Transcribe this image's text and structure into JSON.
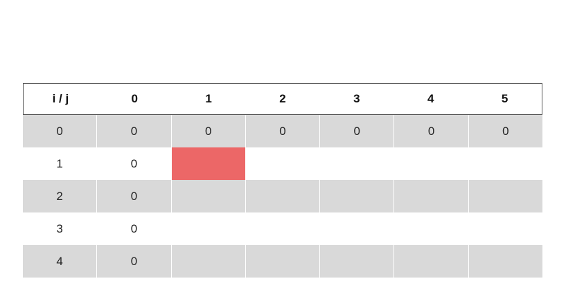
{
  "table": {
    "headers": [
      "i / j",
      "0",
      "1",
      "2",
      "3",
      "4",
      "5"
    ],
    "rows": [
      [
        "0",
        "0",
        "0",
        "0",
        "0",
        "0",
        "0"
      ],
      [
        "1",
        "0",
        "",
        "",
        "",
        "",
        ""
      ],
      [
        "2",
        "0",
        "",
        "",
        "",
        "",
        ""
      ],
      [
        "3",
        "0",
        "",
        "",
        "",
        "",
        ""
      ],
      [
        "4",
        "0",
        "",
        "",
        "",
        "",
        ""
      ]
    ],
    "shaded_rows": [
      0,
      2,
      4
    ],
    "highlight_cell": {
      "row": 1,
      "col": 2
    },
    "colors": {
      "shade": "#d9d9d9",
      "highlight": "#ec6767",
      "header_border": "#555555"
    }
  }
}
